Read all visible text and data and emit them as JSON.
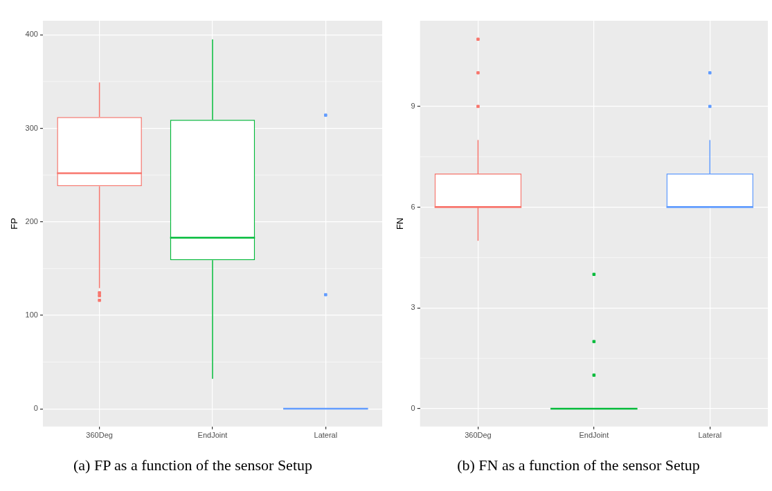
{
  "chart_data": [
    {
      "type": "box",
      "title": "(a) FP as a function of the sensor Setup",
      "ylabel": "FP",
      "categories": [
        "360Deg",
        "EndJoint",
        "Lateral"
      ],
      "colors": [
        "#f8766d",
        "#00ba38",
        "#619cff"
      ],
      "boxes": [
        {
          "low": 129,
          "q1": 238,
          "median": 252,
          "q3": 312,
          "high": 349,
          "outliers": [
            124,
            121,
            116
          ]
        },
        {
          "low": 32,
          "q1": 159,
          "median": 183,
          "q3": 309,
          "high": 395
        },
        {
          "low": 0,
          "q1": 0,
          "median": 0,
          "q3": 0,
          "high": 0,
          "outliers": [
            314,
            122
          ]
        }
      ],
      "ylim": [
        -19,
        415
      ],
      "yticks": [
        0,
        100,
        200,
        300,
        400
      ],
      "grid": true
    },
    {
      "type": "box",
      "title": "(b) FN as a function of the sensor Setup",
      "ylabel": "FN",
      "categories": [
        "360Deg",
        "EndJoint",
        "Lateral"
      ],
      "colors": [
        "#f8766d",
        "#00ba38",
        "#619cff"
      ],
      "boxes": [
        {
          "low": 5,
          "q1": 6,
          "median": 6,
          "q3": 7,
          "high": 8,
          "outliers": [
            9,
            10,
            11
          ]
        },
        {
          "low": 0,
          "q1": 0,
          "median": 0,
          "q3": 0,
          "high": 0,
          "outliers": [
            1,
            2,
            4
          ]
        },
        {
          "low": 6,
          "q1": 6,
          "median": 6,
          "q3": 7,
          "high": 8,
          "outliers": [
            9,
            10
          ]
        }
      ],
      "ylim": [
        -0.53,
        11.55
      ],
      "yticks": [
        0,
        3,
        6,
        9
      ],
      "grid": true
    }
  ]
}
